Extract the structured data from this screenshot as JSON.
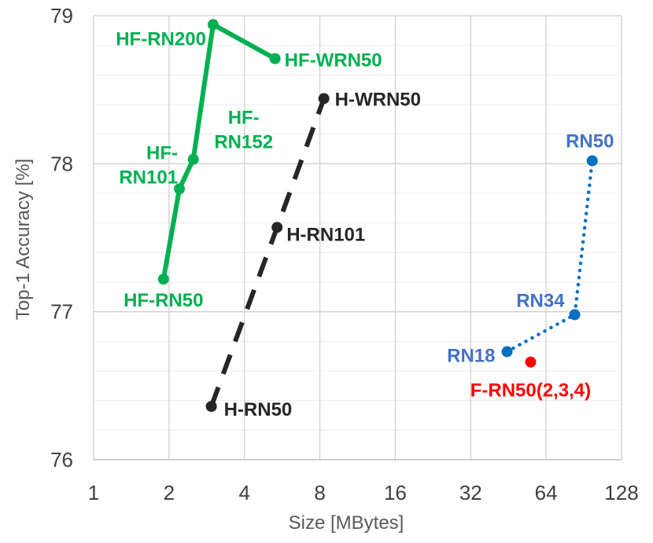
{
  "chart_data": {
    "type": "scatter",
    "xlabel": "Size [MBytes]",
    "ylabel": "Top-1 Accuracy [%]",
    "x_scale": "log2",
    "xlim": [
      1,
      128
    ],
    "ylim": [
      76,
      79
    ],
    "x_ticks": [
      "1",
      "2",
      "4",
      "8",
      "16",
      "32",
      "64",
      "128"
    ],
    "y_ticks": [
      "76",
      "77",
      "78",
      "79"
    ],
    "grid": true,
    "series": [
      {
        "color": "#00b050",
        "line_style": "solid",
        "points": [
          {
            "x": 1.9,
            "y": 77.22,
            "label": "HF-RN50"
          },
          {
            "x": 2.2,
            "y": 77.83,
            "label": "HF-\nRN101"
          },
          {
            "x": 2.5,
            "y": 78.03,
            "label": "HF-\nRN152"
          },
          {
            "x": 3.0,
            "y": 78.94,
            "label": "HF-RN200"
          },
          {
            "x": 5.3,
            "y": 78.71,
            "label": "HF-WRN50"
          }
        ]
      },
      {
        "color": "#262626",
        "line_style": "dashed",
        "points": [
          {
            "x": 2.95,
            "y": 76.36,
            "label": "H-RN50"
          },
          {
            "x": 5.4,
            "y": 77.57,
            "label": "H-RN101"
          },
          {
            "x": 8.3,
            "y": 78.44,
            "label": "H-WRN50"
          }
        ]
      },
      {
        "color": "#0070c0",
        "label_color": "#4472c4",
        "line_style": "dotted",
        "points": [
          {
            "x": 44.7,
            "y": 76.73,
            "label": "RN18"
          },
          {
            "x": 83.3,
            "y": 76.98,
            "label": "RN34"
          },
          {
            "x": 97.8,
            "y": 78.02,
            "label": "RN50"
          }
        ]
      },
      {
        "color": "#ff0000",
        "line_style": "none",
        "points": [
          {
            "x": 55.5,
            "y": 76.66,
            "label": "F-RN50(2,3,4)"
          }
        ]
      }
    ]
  }
}
